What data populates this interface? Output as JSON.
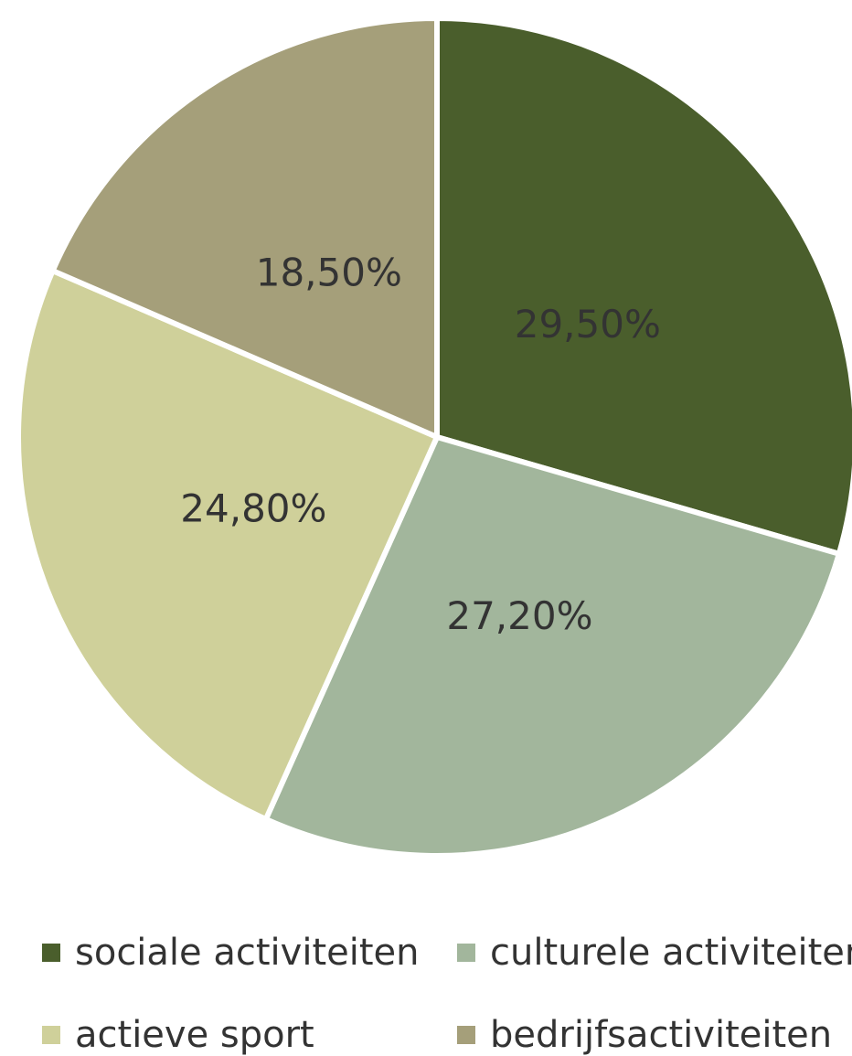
{
  "chart_data": {
    "type": "pie",
    "title": "",
    "start_angle": "12 o'clock",
    "direction": "clockwise",
    "legend_position": "bottom",
    "slices": [
      {
        "name": "sociale activiteiten",
        "value": 29.5,
        "label": "29,50%",
        "color": "#4a5e2c"
      },
      {
        "name": "culturele activiteiten",
        "value": 27.2,
        "label": "27,20%",
        "color": "#a2b69c"
      },
      {
        "name": "actieve sport",
        "value": 24.8,
        "label": "24,80%",
        "color": "#cfd09a"
      },
      {
        "name": "bedrijfsactiviteiten",
        "value": 18.5,
        "label": "18,50%",
        "color": "#a59f7a"
      }
    ]
  }
}
